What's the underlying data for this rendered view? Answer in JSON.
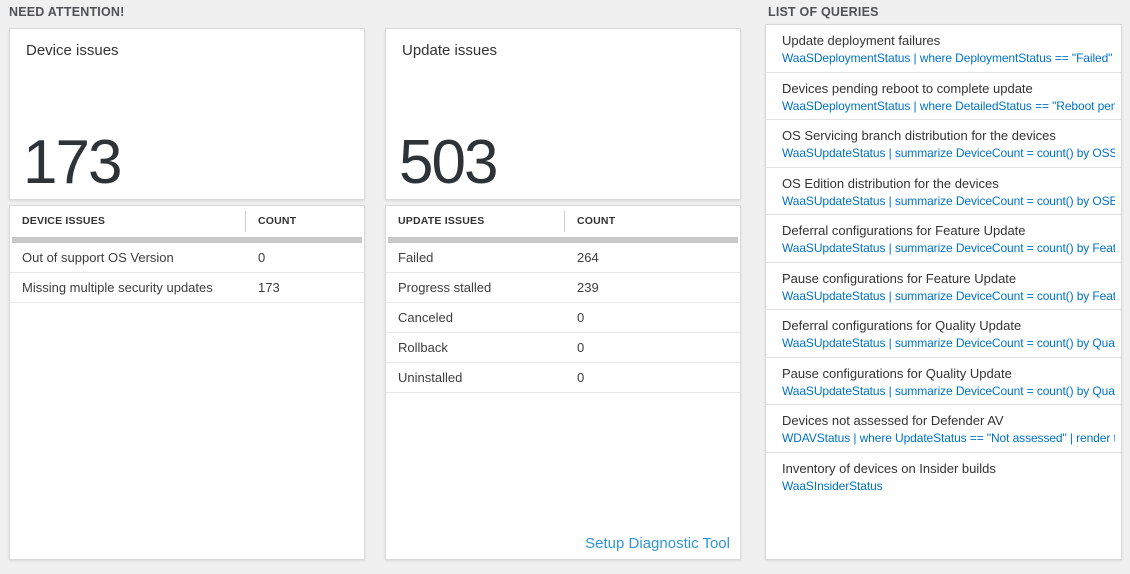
{
  "colors": {
    "background": "#f0f0f0",
    "query_text_blue": "#0072c6",
    "diagnostic_link_blue": "#3095d8",
    "big_number_text": "#2e3338",
    "scrollbar_gray": "#c8c8c8"
  },
  "sections": {
    "need_attention": "NEED ATTENTION!",
    "list_of_queries": "LIST OF QUERIES"
  },
  "tiles": {
    "device": {
      "title": "Device issues",
      "count": "173"
    },
    "update": {
      "title": "Update issues",
      "count": "503"
    }
  },
  "tables": {
    "device": {
      "headers": [
        "DEVICE ISSUES",
        "COUNT"
      ],
      "rows": [
        [
          "Out of support OS Version",
          "0"
        ],
        [
          "Missing multiple security updates",
          "173"
        ]
      ]
    },
    "update": {
      "headers": [
        "UPDATE ISSUES",
        "COUNT"
      ],
      "rows": [
        [
          "Failed",
          "264"
        ],
        [
          "Progress stalled",
          "239"
        ],
        [
          "Canceled",
          "0"
        ],
        [
          "Rollback",
          "0"
        ],
        [
          "Uninstalled",
          "0"
        ]
      ],
      "footer_link": "Setup Diagnostic Tool"
    }
  },
  "queries": {
    "items": [
      {
        "title": "Update deployment failures",
        "query": "WaaSDeploymentStatus | where DeploymentStatus == \"Failed\" |..."
      },
      {
        "title": "Devices pending reboot to complete update",
        "query": "WaaSDeploymentStatus | where DetailedStatus == \"Reboot pend..."
      },
      {
        "title": "OS Servicing branch distribution for the devices",
        "query": "WaaSUpdateStatus | summarize DeviceCount = count() by OSSer..."
      },
      {
        "title": "OS Edition distribution for the devices",
        "query": "WaaSUpdateStatus | summarize DeviceCount = count() by OSEdit..."
      },
      {
        "title": "Deferral configurations for Feature Update",
        "query": "WaaSUpdateStatus | summarize DeviceCount = count() by Featur..."
      },
      {
        "title": "Pause configurations for Feature Update",
        "query": "WaaSUpdateStatus | summarize DeviceCount = count() by Featur..."
      },
      {
        "title": "Deferral configurations for Quality Update",
        "query": "WaaSUpdateStatus | summarize DeviceCount = count() by Qualit..."
      },
      {
        "title": "Pause configurations for Quality Update",
        "query": "WaaSUpdateStatus | summarize DeviceCount = count() by Qualit..."
      },
      {
        "title": "Devices not assessed for Defender AV",
        "query": "WDAVStatus | where UpdateStatus == \"Not assessed\" | render ta..."
      },
      {
        "title": "Inventory of devices on Insider builds",
        "query": "WaaSInsiderStatus"
      }
    ]
  }
}
